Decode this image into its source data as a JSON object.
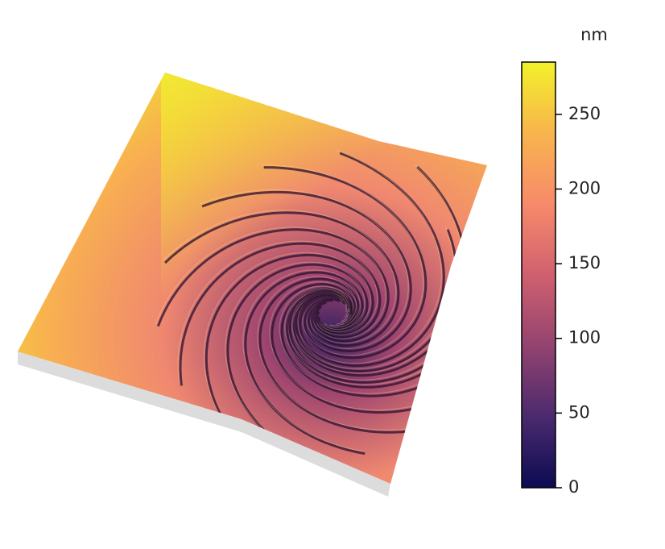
{
  "chart_data": {
    "type": "surface",
    "colorbar_label": "nm",
    "clim": [
      0,
      285
    ],
    "cticks": [
      0,
      50,
      100,
      150,
      200,
      250
    ],
    "colormap": [
      "#0c0b52",
      "#4b2a6e",
      "#93436f",
      "#d0606f",
      "#f78a6a",
      "#f8b44d",
      "#f2f22a"
    ]
  }
}
